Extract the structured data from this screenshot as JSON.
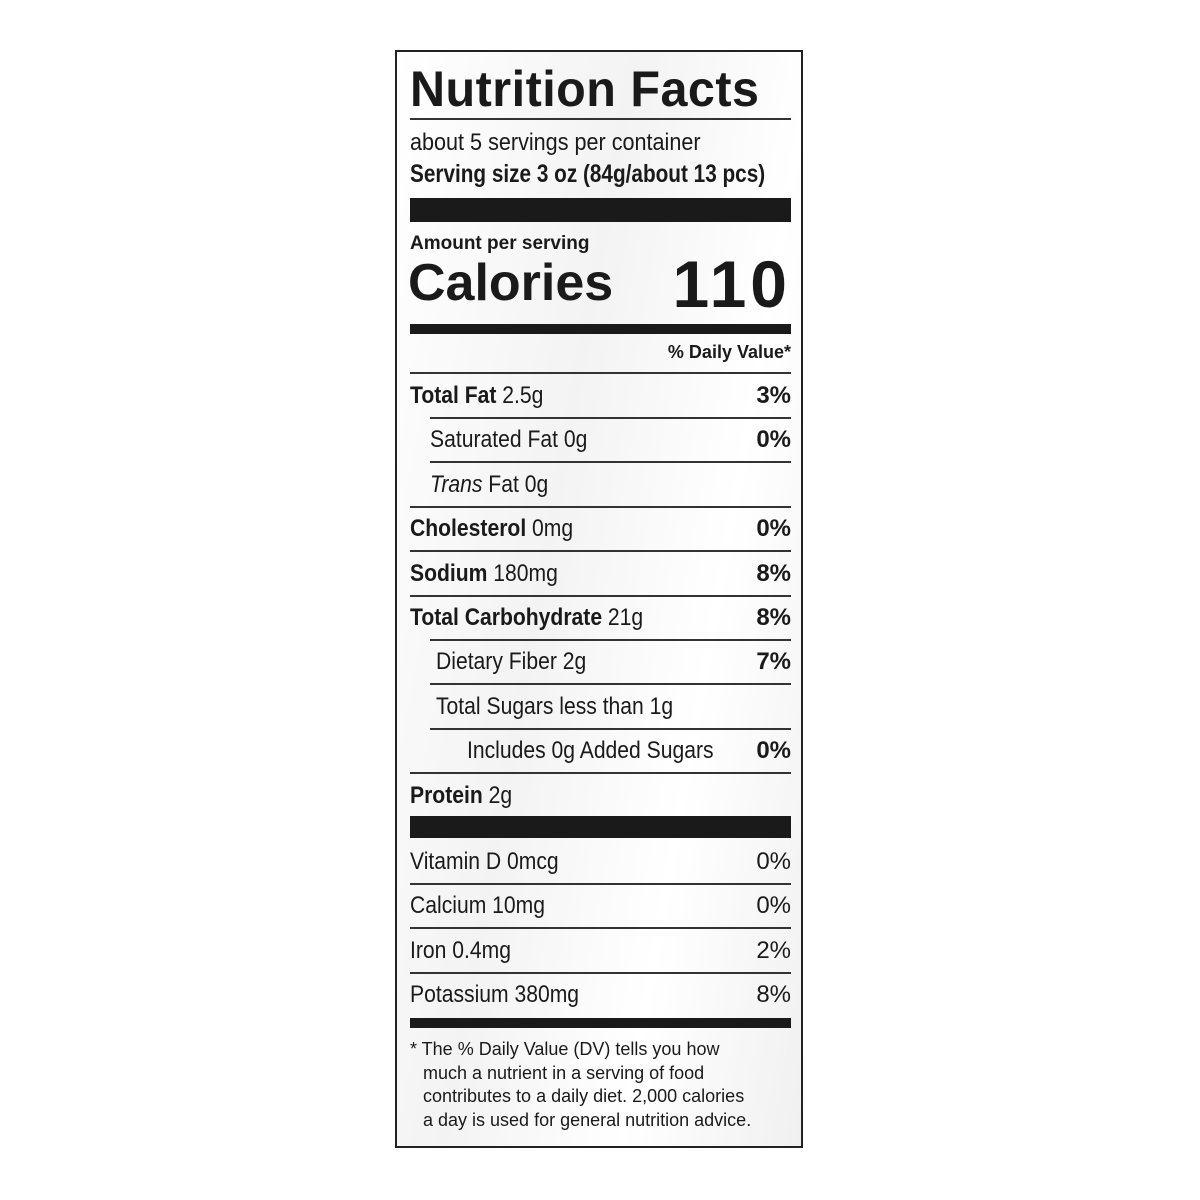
{
  "title": "Nutrition Facts",
  "servings_per_container": "about 5 servings per container",
  "serving_size": "Serving size 3 oz (84g/about 13 pcs)",
  "amount_per_serving": "Amount per serving",
  "calories_label": "Calories",
  "calories_value": "110",
  "daily_value_header": "% Daily Value*",
  "nutrients": [
    {
      "name": "Total Fat",
      "amount": "2.5g",
      "dv": "3%",
      "bold": true,
      "indent": 0
    },
    {
      "name": "Saturated Fat",
      "amount": "0g",
      "dv": "0%",
      "bold": false,
      "indent": 1
    },
    {
      "name": "Trans",
      "name_suffix": "Fat",
      "amount": "0g",
      "dv": "",
      "bold": false,
      "indent": 1,
      "italic": true
    },
    {
      "name": "Cholesterol",
      "amount": "0mg",
      "dv": "0%",
      "bold": true,
      "indent": 0
    },
    {
      "name": "Sodium",
      "amount": "180mg",
      "dv": "8%",
      "bold": true,
      "indent": 0
    },
    {
      "name": "Total Carbohydrate",
      "amount": "21g",
      "dv": "8%",
      "bold": true,
      "indent": 0
    },
    {
      "name": "Dietary Fiber",
      "amount": "2g",
      "dv": "7%",
      "bold": false,
      "indent": 1
    },
    {
      "name": "Total Sugars less than",
      "amount": "1g",
      "dv": "",
      "bold": false,
      "indent": 1
    },
    {
      "name": "Includes 0g Added Sugars",
      "amount": "",
      "dv": "0%",
      "bold": false,
      "indent": 2
    },
    {
      "name": "Protein",
      "amount": "2g",
      "dv": "",
      "bold": true,
      "indent": 0
    }
  ],
  "vitamins": [
    {
      "name": "Vitamin D",
      "amount": "0mcg",
      "dv": "0%"
    },
    {
      "name": "Calcium",
      "amount": "10mg",
      "dv": "0%"
    },
    {
      "name": "Iron",
      "amount": "0.4mg",
      "dv": "2%"
    },
    {
      "name": "Potassium",
      "amount": "380mg",
      "dv": "8%"
    }
  ],
  "footnote": [
    "* The % Daily Value (DV) tells you how",
    "much a nutrient in a serving of food",
    "contributes to a daily diet. 2,000 calories",
    "a day is used for general nutrition advice."
  ]
}
